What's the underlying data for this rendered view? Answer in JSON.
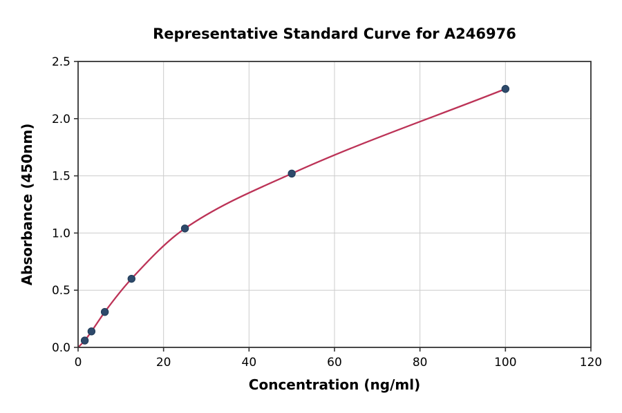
{
  "figure": {
    "background": "#ffffff"
  },
  "chart_data": {
    "type": "scatter",
    "title": "Representative Standard Curve for A246976",
    "xlabel": "Concentration (ng/ml)",
    "ylabel": "Absorbance (450nm)",
    "xlim": [
      0,
      120
    ],
    "ylim": [
      0,
      2.5
    ],
    "x_tick_labels": [
      "0",
      "20",
      "40",
      "60",
      "80",
      "100",
      "120"
    ],
    "y_tick_labels": [
      "0.0",
      "0.5",
      "1.0",
      "1.5",
      "2.0",
      "2.5"
    ],
    "grid": true,
    "legend": false,
    "series": [
      {
        "name": "standard-points",
        "kind": "scatter",
        "color": "#2e4a6b",
        "edge_color": "#1f3a57",
        "points": [
          [
            1.56,
            0.06
          ],
          [
            3.13,
            0.14
          ],
          [
            6.25,
            0.31
          ],
          [
            12.5,
            0.6
          ],
          [
            25,
            1.04
          ],
          [
            50,
            1.52
          ],
          [
            100,
            2.26
          ]
        ]
      },
      {
        "name": "fit-curve",
        "kind": "line",
        "color": "#bc3357",
        "points": [
          [
            0,
            0.0
          ],
          [
            1.56,
            0.06
          ],
          [
            3.13,
            0.14
          ],
          [
            6.25,
            0.31
          ],
          [
            12.5,
            0.6
          ],
          [
            25,
            1.04
          ],
          [
            50,
            1.52
          ],
          [
            100,
            2.26
          ]
        ]
      }
    ],
    "styles": {
      "grid_color": "#cccccc",
      "spine_color": "#333333",
      "tick_color": "#333333",
      "text_color": "#000000"
    }
  }
}
